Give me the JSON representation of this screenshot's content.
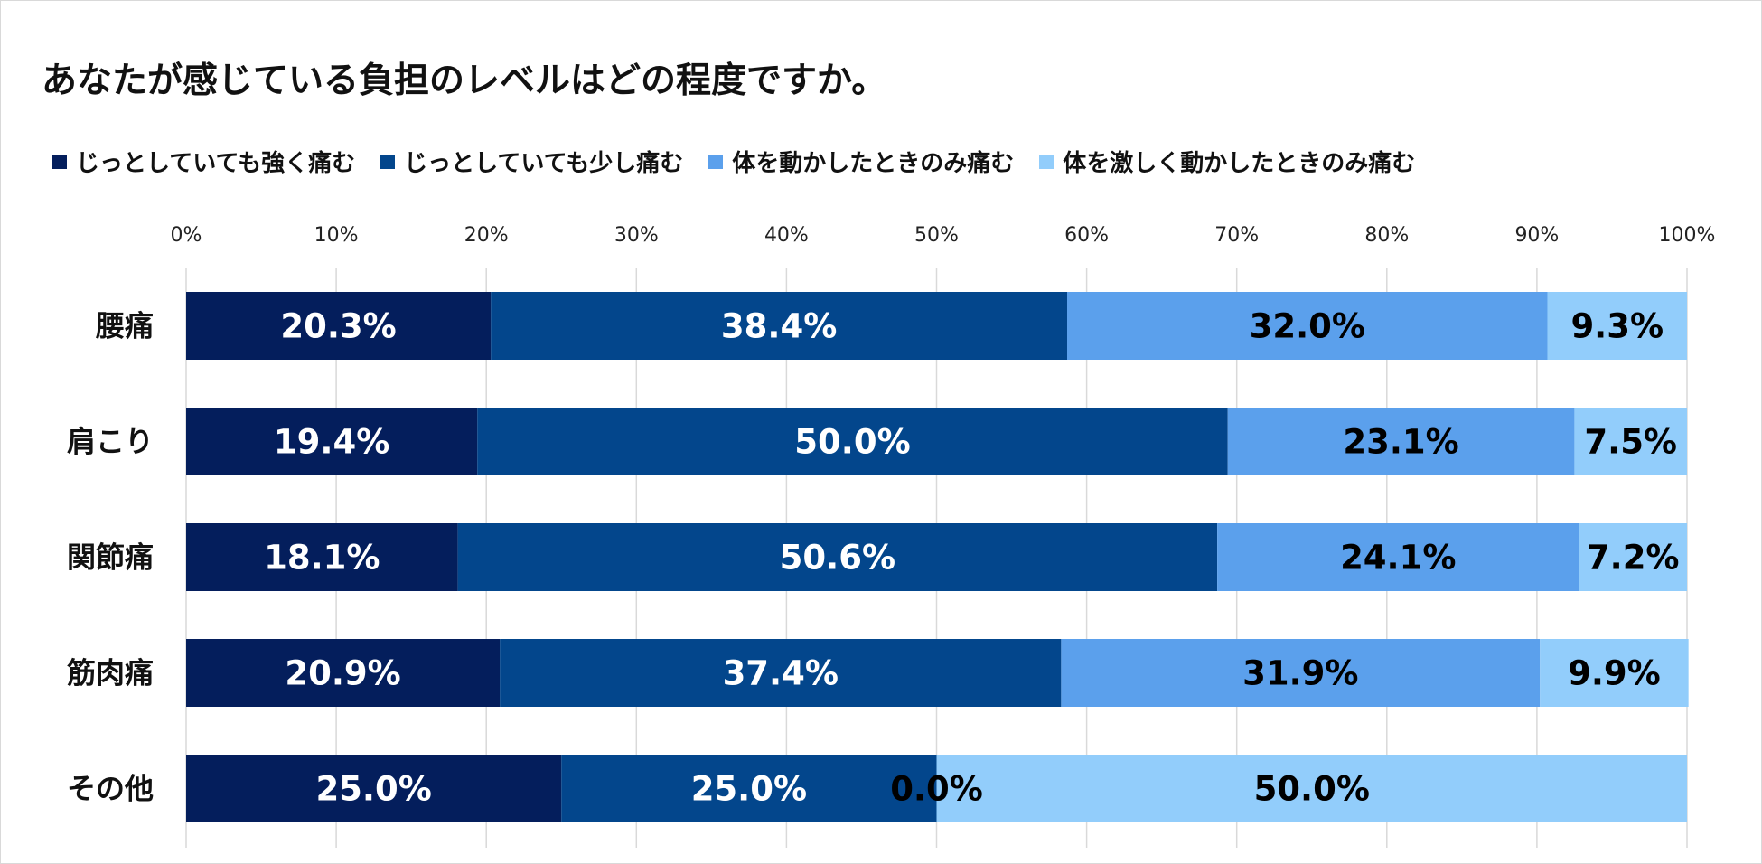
{
  "chart_data": {
    "type": "bar",
    "orientation": "horizontal",
    "stacked": true,
    "normalized": true,
    "title": "あなたが感じている負担のレベルはどの程度ですか。",
    "categories": [
      "腰痛",
      "肩こり",
      "関節痛",
      "筋肉痛",
      "その他"
    ],
    "series": [
      {
        "name": "じっとしていても強く痛む",
        "color": "#041e5c",
        "label_color": "#ffffff",
        "values": [
          20.3,
          19.4,
          18.1,
          20.9,
          25.0
        ]
      },
      {
        "name": "じっとしていても少し痛む",
        "color": "#03468c",
        "label_color": "#ffffff",
        "values": [
          38.4,
          50.0,
          50.6,
          37.4,
          25.0
        ]
      },
      {
        "name": "体を動かしたときのみ痛む",
        "color": "#5ba0ec",
        "label_color": "#000000",
        "values": [
          32.0,
          23.1,
          24.1,
          31.9,
          0.0
        ]
      },
      {
        "name": "体を激しく動かしたときのみ痛む",
        "color": "#92cdfb",
        "label_color": "#000000",
        "values": [
          9.3,
          7.5,
          7.2,
          9.9,
          50.0
        ]
      }
    ],
    "data_labels": [
      [
        "20.3%",
        "19.4%",
        "18.1%",
        "20.9%",
        "25.0%"
      ],
      [
        "38.4%",
        "50.0%",
        "50.6%",
        "37.4%",
        "25.0%"
      ],
      [
        "32.0%",
        "23.1%",
        "24.1%",
        "31.9%",
        "0.0%"
      ],
      [
        "9.3%",
        "7.5%",
        "7.2%",
        "9.9%",
        "50.0%"
      ]
    ],
    "x_ticks": [
      "0%",
      "10%",
      "20%",
      "30%",
      "40%",
      "50%",
      "60%",
      "70%",
      "80%",
      "90%",
      "100%"
    ],
    "xlim": [
      0,
      100
    ],
    "grid": true,
    "legend_position": "top-left"
  }
}
